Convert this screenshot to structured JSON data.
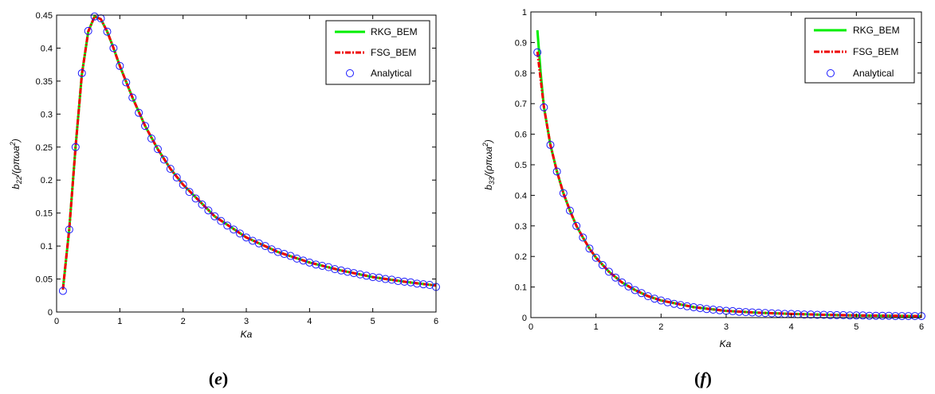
{
  "figure": {
    "background": "#ffffff",
    "panel_labels": [
      "(e)",
      "(f)"
    ]
  },
  "colors": {
    "rkg": "#00ee00",
    "fsg": "#ee0000",
    "analytical": "#1a1aff"
  },
  "chart_data": [
    {
      "type": "line",
      "panel_label": "(e)",
      "panel_letter": "e",
      "xlabel": "Ka",
      "ylabel_main": "b",
      "ylabel_sub": "22",
      "ylabel_rest": "/(ρπωa",
      "ylabel_sup": "2",
      "ylabel_close": ")",
      "xlim": [
        0,
        6
      ],
      "ylim": [
        0,
        0.45
      ],
      "xticks": [
        0,
        1,
        2,
        3,
        4,
        5,
        6
      ],
      "yticks": [
        0,
        0.05,
        0.1,
        0.15,
        0.2,
        0.25,
        0.3,
        0.35,
        0.4,
        0.45
      ],
      "legend": {
        "position": "top-right",
        "entries": [
          "RKG_BEM",
          "FSG_BEM",
          "Analytical"
        ]
      },
      "series": [
        {
          "name": "RKG_BEM",
          "style": "solid",
          "x": [
            0.1,
            0.2,
            0.3,
            0.4,
            0.5,
            0.6,
            0.7,
            0.8,
            0.9,
            1.0,
            1.2,
            1.4,
            1.6,
            1.8,
            2.0,
            2.5,
            3.0,
            3.5,
            4.0,
            4.5,
            5.0,
            5.5,
            6.0
          ],
          "y": [
            0.034,
            0.126,
            0.25,
            0.36,
            0.425,
            0.448,
            0.444,
            0.425,
            0.4,
            0.373,
            0.325,
            0.282,
            0.247,
            0.217,
            0.193,
            0.145,
            0.113,
            0.091,
            0.075,
            0.063,
            0.053,
            0.046,
            0.04
          ]
        },
        {
          "name": "FSG_BEM",
          "style": "dashdot",
          "x": [
            0.1,
            0.2,
            0.3,
            0.4,
            0.5,
            0.6,
            0.7,
            0.8,
            0.9,
            1.0,
            1.2,
            1.4,
            1.6,
            1.8,
            2.0,
            2.5,
            3.0,
            3.5,
            4.0,
            4.5,
            5.0,
            5.5,
            6.0
          ],
          "y": [
            0.034,
            0.126,
            0.25,
            0.36,
            0.425,
            0.448,
            0.444,
            0.425,
            0.4,
            0.373,
            0.325,
            0.282,
            0.247,
            0.217,
            0.193,
            0.145,
            0.113,
            0.091,
            0.075,
            0.063,
            0.053,
            0.046,
            0.04
          ]
        },
        {
          "name": "Analytical",
          "style": "marker",
          "x": [
            0.1,
            0.2,
            0.3,
            0.4,
            0.5,
            0.6,
            0.7,
            0.8,
            0.9,
            1.0,
            1.1,
            1.2,
            1.3,
            1.4,
            1.5,
            1.6,
            1.7,
            1.8,
            1.9,
            2.0,
            2.1,
            2.2,
            2.3,
            2.4,
            2.5,
            2.6,
            2.7,
            2.8,
            2.9,
            3.0,
            3.1,
            3.2,
            3.3,
            3.4,
            3.5,
            3.6,
            3.7,
            3.8,
            3.9,
            4.0,
            4.1,
            4.2,
            4.3,
            4.4,
            4.5,
            4.6,
            4.7,
            4.8,
            4.9,
            5.0,
            5.1,
            5.2,
            5.3,
            5.4,
            5.5,
            5.6,
            5.7,
            5.8,
            5.9,
            6.0
          ],
          "y": [
            0.032,
            0.125,
            0.25,
            0.362,
            0.426,
            0.448,
            0.445,
            0.425,
            0.4,
            0.373,
            0.348,
            0.325,
            0.302,
            0.282,
            0.263,
            0.247,
            0.231,
            0.217,
            0.204,
            0.193,
            0.182,
            0.172,
            0.163,
            0.154,
            0.145,
            0.138,
            0.131,
            0.125,
            0.119,
            0.113,
            0.108,
            0.104,
            0.1,
            0.095,
            0.091,
            0.088,
            0.085,
            0.081,
            0.078,
            0.075,
            0.072,
            0.07,
            0.068,
            0.065,
            0.063,
            0.061,
            0.059,
            0.057,
            0.055,
            0.053,
            0.052,
            0.05,
            0.049,
            0.047,
            0.046,
            0.045,
            0.043,
            0.042,
            0.041,
            0.038
          ]
        }
      ]
    },
    {
      "type": "line",
      "panel_label": "(f)",
      "panel_letter": "f",
      "xlabel": "Ka",
      "ylabel_main": "b",
      "ylabel_sub": "33",
      "ylabel_rest": "/(ρπωa",
      "ylabel_sup": "2",
      "ylabel_close": ")",
      "xlim": [
        0,
        6
      ],
      "ylim": [
        0,
        1
      ],
      "xticks": [
        0,
        1,
        2,
        3,
        4,
        5,
        6
      ],
      "yticks": [
        0,
        0.1,
        0.2,
        0.3,
        0.4,
        0.5,
        0.6,
        0.7,
        0.8,
        0.9,
        1
      ],
      "legend": {
        "position": "top-right",
        "entries": [
          "RKG_BEM",
          "FSG_BEM",
          "Analytical"
        ]
      },
      "series": [
        {
          "name": "RKG_BEM",
          "style": "solid",
          "x": [
            0.1,
            0.15,
            0.2,
            0.3,
            0.4,
            0.5,
            0.6,
            0.7,
            0.8,
            0.9,
            1.0,
            1.2,
            1.4,
            1.6,
            1.8,
            2.0,
            2.5,
            3.0,
            3.5,
            4.0,
            4.5,
            5.0,
            5.5,
            6.0
          ],
          "y": [
            0.94,
            0.8,
            0.69,
            0.565,
            0.478,
            0.407,
            0.35,
            0.3,
            0.262,
            0.226,
            0.196,
            0.15,
            0.115,
            0.09,
            0.07,
            0.056,
            0.034,
            0.022,
            0.016,
            0.012,
            0.009,
            0.007,
            0.006,
            0.005
          ]
        },
        {
          "name": "FSG_BEM",
          "style": "dashdot",
          "x": [
            0.1,
            0.2,
            0.3,
            0.4,
            0.5,
            0.6,
            0.7,
            0.8,
            0.9,
            1.0,
            1.2,
            1.4,
            1.6,
            1.8,
            2.0,
            2.5,
            3.0,
            3.5,
            4.0,
            4.5,
            5.0,
            5.5,
            6.0
          ],
          "y": [
            0.87,
            0.69,
            0.565,
            0.478,
            0.407,
            0.35,
            0.3,
            0.262,
            0.226,
            0.196,
            0.15,
            0.115,
            0.09,
            0.07,
            0.056,
            0.034,
            0.022,
            0.016,
            0.012,
            0.009,
            0.007,
            0.006,
            0.005
          ]
        },
        {
          "name": "Analytical",
          "style": "marker",
          "x": [
            0.1,
            0.2,
            0.3,
            0.4,
            0.5,
            0.6,
            0.7,
            0.8,
            0.9,
            1.0,
            1.1,
            1.2,
            1.3,
            1.4,
            1.5,
            1.6,
            1.7,
            1.8,
            1.9,
            2.0,
            2.1,
            2.2,
            2.3,
            2.4,
            2.5,
            2.6,
            2.7,
            2.8,
            2.9,
            3.0,
            3.1,
            3.2,
            3.3,
            3.4,
            3.5,
            3.6,
            3.7,
            3.8,
            3.9,
            4.0,
            4.1,
            4.2,
            4.3,
            4.4,
            4.5,
            4.6,
            4.7,
            4.8,
            4.9,
            5.0,
            5.1,
            5.2,
            5.3,
            5.4,
            5.5,
            5.6,
            5.7,
            5.8,
            5.9,
            6.0
          ],
          "y": [
            0.868,
            0.688,
            0.565,
            0.478,
            0.407,
            0.35,
            0.3,
            0.262,
            0.226,
            0.196,
            0.172,
            0.15,
            0.131,
            0.115,
            0.102,
            0.09,
            0.08,
            0.07,
            0.062,
            0.056,
            0.05,
            0.045,
            0.041,
            0.037,
            0.034,
            0.031,
            0.028,
            0.026,
            0.024,
            0.022,
            0.021,
            0.019,
            0.018,
            0.017,
            0.016,
            0.015,
            0.014,
            0.013,
            0.012,
            0.012,
            0.011,
            0.01,
            0.01,
            0.009,
            0.009,
            0.008,
            0.008,
            0.008,
            0.007,
            0.007,
            0.007,
            0.006,
            0.006,
            0.006,
            0.006,
            0.005,
            0.005,
            0.005,
            0.005,
            0.005
          ]
        }
      ]
    }
  ]
}
